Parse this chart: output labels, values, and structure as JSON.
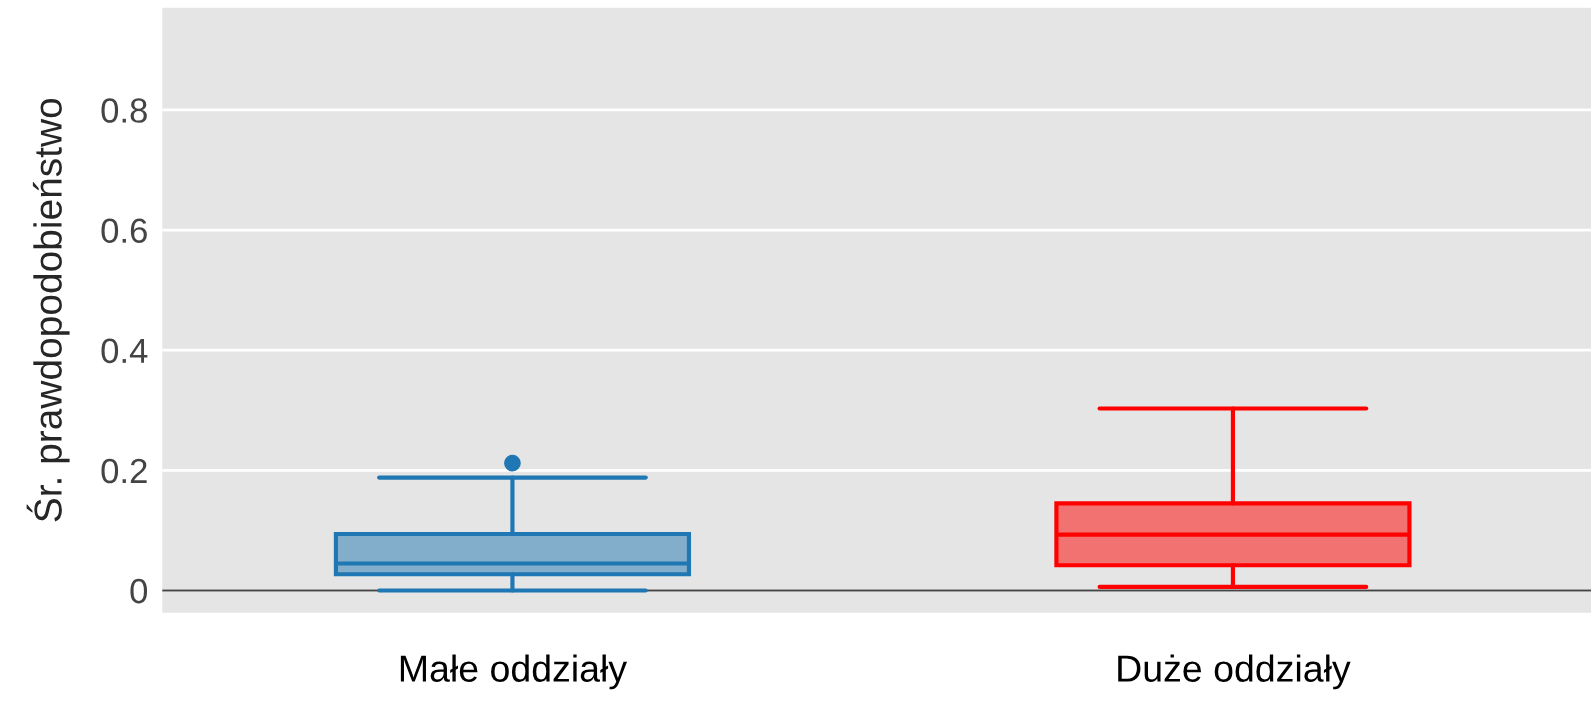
{
  "chart_data": {
    "type": "box",
    "ylabel": "Śr. prawdopodobieństwo",
    "categories": [
      "Małe oddziały",
      "Duże oddziały"
    ],
    "boxes": [
      {
        "low": 0.0,
        "q1": 0.027,
        "median": 0.045,
        "q3": 0.094,
        "high": 0.188,
        "outliers": [
          0.212
        ]
      },
      {
        "low": 0.006,
        "q1": 0.042,
        "median": 0.093,
        "q3": 0.145,
        "high": 0.303
      }
    ],
    "colors": [
      "#1f77b4",
      "#ff0000"
    ],
    "ylim": [
      -0.037,
      0.97
    ],
    "yticks": [
      0,
      0.2,
      0.4,
      0.6,
      0.8
    ],
    "grid": "y",
    "legend": false,
    "ref_lines": [
      {
        "axis": "y",
        "value": 0,
        "color": "#444444"
      }
    ]
  }
}
